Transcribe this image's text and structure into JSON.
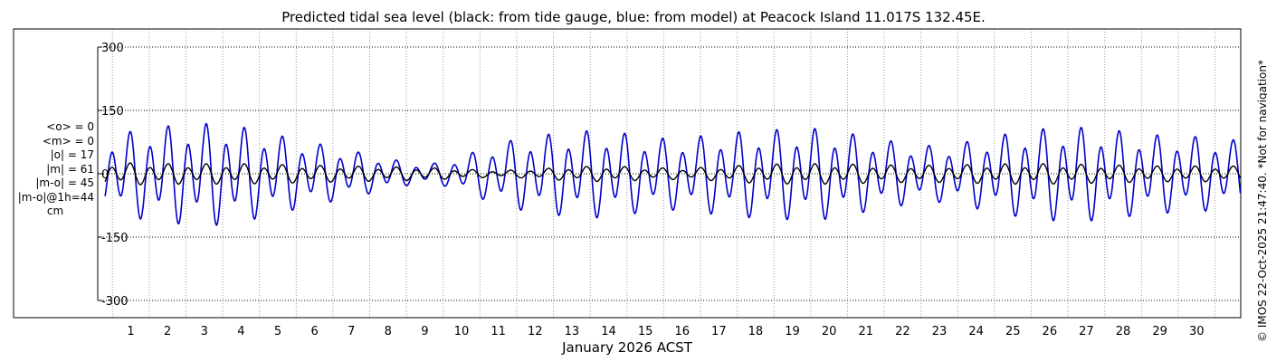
{
  "chart_data": {
    "type": "line",
    "title": "Predicted tidal sea level (black: from tide gauge, blue: from model) at Peacock Island 11.017S 132.45E.",
    "xlabel": "January 2026 ACST",
    "ylabel": "",
    "units": "cm",
    "ylim": [
      -320,
      320
    ],
    "xlim": [
      0.1,
      31.2
    ],
    "yticks": [
      300,
      150,
      0,
      -150,
      -300
    ],
    "yticklabels": [
      "300",
      "150",
      "0",
      "-150",
      "-300"
    ],
    "xticks": [
      1,
      2,
      3,
      4,
      5,
      6,
      7,
      8,
      9,
      10,
      11,
      12,
      13,
      14,
      15,
      16,
      17,
      18,
      19,
      20,
      21,
      22,
      23,
      24,
      25,
      26,
      27,
      28,
      29,
      30
    ],
    "xticklabels": [
      "1",
      "2",
      "3",
      "4",
      "5",
      "6",
      "7",
      "8",
      "9",
      "10",
      "11",
      "12",
      "13",
      "14",
      "15",
      "16",
      "17",
      "18",
      "19",
      "20",
      "21",
      "22",
      "23",
      "24",
      "25",
      "26",
      "27",
      "28",
      "29",
      "30"
    ],
    "grid": true,
    "series": [
      {
        "name": "model",
        "color": "#0000cc",
        "x": [
          0.3,
          0.5,
          1.0,
          1.5,
          2.0,
          2.5,
          3.0,
          3.5,
          4.0,
          4.5,
          5.0,
          5.5,
          6.0,
          6.5,
          7.0,
          7.5,
          8.0,
          8.5,
          9.0,
          9.5,
          10.0,
          10.5,
          11.0,
          11.5,
          12.0,
          12.5,
          13.0,
          13.5,
          14.0,
          14.5,
          15.0,
          15.5,
          16.0,
          16.5,
          17.0,
          17.5,
          18.0,
          18.5,
          19.0,
          19.5,
          20.0,
          20.5,
          21.0,
          21.5,
          22.0,
          22.5,
          23.0,
          23.5,
          24.0,
          24.5,
          25.0,
          25.5,
          26.0,
          26.5,
          27.0,
          27.5,
          28.0,
          28.5,
          29.0,
          29.5,
          30.0,
          30.5,
          31.0
        ],
        "amplitude": [
          80,
          95,
          110,
          118,
          124,
          128,
          130,
          130,
          122,
          112,
          100,
          90,
          80,
          70,
          60,
          50,
          40,
          30,
          25,
          30,
          45,
          62,
          78,
          90,
          98,
          104,
          108,
          112,
          110,
          104,
          96,
          92,
          92,
          98,
          104,
          108,
          112,
          114,
          116,
          118,
          114,
          106,
          96,
          88,
          80,
          74,
          72,
          78,
          88,
          98,
          106,
          114,
          118,
          120,
          120,
          116,
          110,
          104,
          100,
          98,
          96,
          92,
          88
        ],
        "mean": 0
      },
      {
        "name": "tide gauge",
        "color": "#000000",
        "x": [
          0.3,
          1.0,
          2.0,
          3.0,
          4.0,
          5.0,
          6.0,
          7.0,
          8.0,
          9.0,
          10.0,
          11.0,
          12.0,
          13.0,
          14.0,
          15.0,
          16.0,
          17.0,
          18.0,
          19.0,
          20.0,
          21.0,
          22.0,
          23.0,
          24.0,
          25.0,
          26.0,
          27.0,
          28.0,
          29.0,
          30.0,
          31.0
        ],
        "amplitude": [
          28,
          28,
          26,
          26,
          26,
          24,
          22,
          20,
          18,
          16,
          12,
          8,
          12,
          18,
          20,
          16,
          14,
          18,
          24,
          26,
          26,
          24,
          22,
          22,
          24,
          26,
          26,
          24,
          22,
          20,
          20,
          20
        ],
        "mean": 0
      }
    ],
    "stats": [
      "<o> = 0",
      "<m> = 0",
      "|o| = 17",
      "|m| = 61",
      "|m-o| = 45",
      "|m-o|@1h=44",
      "cm"
    ],
    "credit": "© IMOS 22-Oct-2025 21:47:40. *Not for navigation*"
  }
}
